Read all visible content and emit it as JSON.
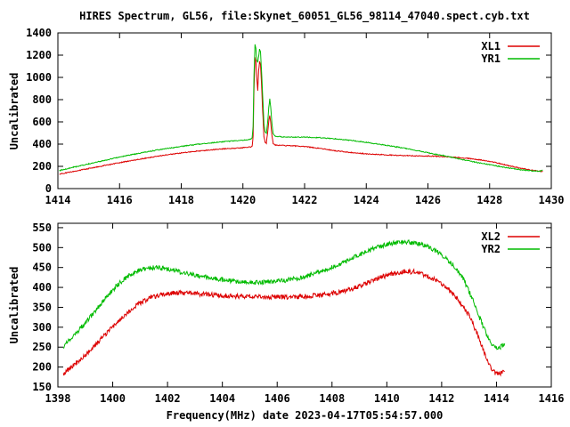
{
  "title": "HIRES Spectrum, GL56, file:Skynet_60051_GL56_98114_47040.spect.cyb.txt",
  "colors": {
    "series_red": "#dd0000",
    "series_green": "#00bb00",
    "axis": "#000000",
    "background": "#ffffff"
  },
  "chart_data": [
    {
      "type": "line",
      "panel": "top",
      "ylabel": "Uncalibrated",
      "xlim": [
        1414,
        1430
      ],
      "ylim": [
        0,
        1400
      ],
      "xticks": [
        1414,
        1416,
        1418,
        1420,
        1422,
        1424,
        1426,
        1428,
        1430
      ],
      "yticks": [
        0,
        200,
        400,
        600,
        800,
        1000,
        1200,
        1400
      ],
      "legend_position": "top-right",
      "series": [
        {
          "name": "XL1",
          "color": "#dd0000",
          "noise": 4,
          "points": [
            [
              1414.05,
              130
            ],
            [
              1414.5,
              155
            ],
            [
              1415,
              180
            ],
            [
              1415.5,
              207
            ],
            [
              1416,
              233
            ],
            [
              1416.5,
              258
            ],
            [
              1417,
              281
            ],
            [
              1417.5,
              302
            ],
            [
              1418,
              320
            ],
            [
              1418.5,
              336
            ],
            [
              1419,
              349
            ],
            [
              1419.5,
              360
            ],
            [
              1420,
              368
            ],
            [
              1420.25,
              374
            ],
            [
              1420.3,
              382
            ],
            [
              1420.33,
              470
            ],
            [
              1420.36,
              900
            ],
            [
              1420.39,
              1180
            ],
            [
              1420.42,
              1145
            ],
            [
              1420.45,
              1000
            ],
            [
              1420.48,
              880
            ],
            [
              1420.51,
              1060
            ],
            [
              1420.54,
              1140
            ],
            [
              1420.57,
              1115
            ],
            [
              1420.6,
              960
            ],
            [
              1420.64,
              700
            ],
            [
              1420.68,
              470
            ],
            [
              1420.72,
              415
            ],
            [
              1420.76,
              408
            ],
            [
              1420.8,
              500
            ],
            [
              1420.84,
              610
            ],
            [
              1420.87,
              660
            ],
            [
              1420.9,
              600
            ],
            [
              1420.94,
              480
            ],
            [
              1420.98,
              405
            ],
            [
              1421.05,
              392
            ],
            [
              1421.3,
              388
            ],
            [
              1421.7,
              384
            ],
            [
              1422,
              378
            ],
            [
              1422.5,
              362
            ],
            [
              1423,
              340
            ],
            [
              1423.5,
              325
            ],
            [
              1424,
              313
            ],
            [
              1424.5,
              305
            ],
            [
              1425,
              299
            ],
            [
              1425.5,
              295
            ],
            [
              1426,
              293
            ],
            [
              1426.5,
              288
            ],
            [
              1427,
              279
            ],
            [
              1427.3,
              272
            ],
            [
              1427.7,
              258
            ],
            [
              1428,
              245
            ],
            [
              1428.3,
              228
            ],
            [
              1428.6,
              207
            ],
            [
              1429,
              183
            ],
            [
              1429.3,
              169
            ],
            [
              1429.5,
              161
            ],
            [
              1429.65,
              157
            ],
            [
              1429.72,
              156
            ]
          ]
        },
        {
          "name": "YR1",
          "color": "#00bb00",
          "noise": 4,
          "points": [
            [
              1414.05,
              162
            ],
            [
              1414.5,
              192
            ],
            [
              1415,
              222
            ],
            [
              1415.5,
              253
            ],
            [
              1416,
              283
            ],
            [
              1416.5,
              311
            ],
            [
              1417,
              336
            ],
            [
              1417.5,
              359
            ],
            [
              1418,
              379
            ],
            [
              1418.5,
              397
            ],
            [
              1419,
              412
            ],
            [
              1419.5,
              425
            ],
            [
              1420,
              436
            ],
            [
              1420.25,
              444
            ],
            [
              1420.3,
              455
            ],
            [
              1420.33,
              560
            ],
            [
              1420.36,
              1020
            ],
            [
              1420.39,
              1295
            ],
            [
              1420.42,
              1260
            ],
            [
              1420.45,
              1150
            ],
            [
              1420.48,
              1135
            ],
            [
              1420.51,
              1190
            ],
            [
              1420.54,
              1255
            ],
            [
              1420.57,
              1230
            ],
            [
              1420.6,
              1080
            ],
            [
              1420.64,
              840
            ],
            [
              1420.68,
              590
            ],
            [
              1420.72,
              510
            ],
            [
              1420.76,
              498
            ],
            [
              1420.8,
              590
            ],
            [
              1420.84,
              730
            ],
            [
              1420.87,
              808
            ],
            [
              1420.9,
              740
            ],
            [
              1420.94,
              590
            ],
            [
              1420.98,
              495
            ],
            [
              1421.05,
              470
            ],
            [
              1421.3,
              465
            ],
            [
              1421.7,
              463
            ],
            [
              1422,
              462
            ],
            [
              1422.5,
              458
            ],
            [
              1423,
              448
            ],
            [
              1423.5,
              434
            ],
            [
              1424,
              416
            ],
            [
              1424.5,
              396
            ],
            [
              1425,
              374
            ],
            [
              1425.5,
              350
            ],
            [
              1426,
              322
            ],
            [
              1426.5,
              296
            ],
            [
              1427,
              268
            ],
            [
              1427.5,
              240
            ],
            [
              1428,
              215
            ],
            [
              1428.3,
              200
            ],
            [
              1428.6,
              186
            ],
            [
              1429,
              170
            ],
            [
              1429.3,
              161
            ],
            [
              1429.5,
              157
            ],
            [
              1429.65,
              158
            ],
            [
              1429.72,
              167
            ]
          ]
        }
      ]
    },
    {
      "type": "line",
      "panel": "bottom",
      "ylabel": "Uncalibrated",
      "xlabel": "Frequency(MHz) date 2023-04-17T05:54:57.000",
      "xlim": [
        1398,
        1416
      ],
      "ylim": [
        150,
        561
      ],
      "xticks": [
        1398,
        1400,
        1402,
        1404,
        1406,
        1408,
        1410,
        1412,
        1414,
        1416
      ],
      "yticks": [
        150,
        200,
        250,
        300,
        350,
        400,
        450,
        500,
        550
      ],
      "legend_position": "top-right",
      "series": [
        {
          "name": "XL2",
          "color": "#dd0000",
          "noise": 6,
          "points": [
            [
              1398.2,
              184
            ],
            [
              1398.6,
              206
            ],
            [
              1399,
              231
            ],
            [
              1399.4,
              258
            ],
            [
              1399.8,
              287
            ],
            [
              1400.2,
              315
            ],
            [
              1400.6,
              341
            ],
            [
              1401,
              361
            ],
            [
              1401.4,
              375
            ],
            [
              1401.8,
              383
            ],
            [
              1402.2,
              386
            ],
            [
              1402.6,
              386
            ],
            [
              1403,
              384
            ],
            [
              1403.5,
              382
            ],
            [
              1404,
              380
            ],
            [
              1404.5,
              378
            ],
            [
              1405,
              377
            ],
            [
              1405.5,
              376
            ],
            [
              1406,
              376
            ],
            [
              1406.5,
              376
            ],
            [
              1407,
              377
            ],
            [
              1407.5,
              380
            ],
            [
              1408,
              385
            ],
            [
              1408.5,
              392
            ],
            [
              1409,
              403
            ],
            [
              1409.4,
              414
            ],
            [
              1409.8,
              426
            ],
            [
              1410.2,
              434
            ],
            [
              1410.6,
              440
            ],
            [
              1411,
              439
            ],
            [
              1411.4,
              431
            ],
            [
              1411.8,
              418
            ],
            [
              1412.2,
              398
            ],
            [
              1412.6,
              370
            ],
            [
              1413,
              330
            ],
            [
              1413.3,
              283
            ],
            [
              1413.6,
              228
            ],
            [
              1413.8,
              196
            ],
            [
              1413.95,
              186
            ],
            [
              1414.1,
              183
            ],
            [
              1414.3,
              191
            ]
          ]
        },
        {
          "name": "YR2",
          "color": "#00bb00",
          "noise": 6,
          "points": [
            [
              1398.2,
              252
            ],
            [
              1398.6,
              281
            ],
            [
              1399,
              311
            ],
            [
              1399.4,
              344
            ],
            [
              1399.8,
              378
            ],
            [
              1400.2,
              408
            ],
            [
              1400.6,
              430
            ],
            [
              1401,
              444
            ],
            [
              1401.3,
              449
            ],
            [
              1401.6,
              450
            ],
            [
              1402,
              446
            ],
            [
              1402.4,
              440
            ],
            [
              1402.8,
              434
            ],
            [
              1403.2,
              428
            ],
            [
              1403.6,
              423
            ],
            [
              1404,
              419
            ],
            [
              1404.4,
              416
            ],
            [
              1404.8,
              414
            ],
            [
              1405.2,
              413
            ],
            [
              1405.6,
              413
            ],
            [
              1406,
              415
            ],
            [
              1406.4,
              419
            ],
            [
              1406.8,
              424
            ],
            [
              1407.2,
              431
            ],
            [
              1407.6,
              440
            ],
            [
              1408,
              450
            ],
            [
              1408.4,
              462
            ],
            [
              1408.8,
              475
            ],
            [
              1409.2,
              488
            ],
            [
              1409.6,
              499
            ],
            [
              1410,
              508
            ],
            [
              1410.4,
              513
            ],
            [
              1410.8,
              514
            ],
            [
              1411.2,
              509
            ],
            [
              1411.6,
              499
            ],
            [
              1412,
              482
            ],
            [
              1412.4,
              458
            ],
            [
              1412.8,
              420
            ],
            [
              1413.1,
              375
            ],
            [
              1413.4,
              322
            ],
            [
              1413.65,
              280
            ],
            [
              1413.85,
              257
            ],
            [
              1414,
              250
            ],
            [
              1414.15,
              251
            ],
            [
              1414.3,
              259
            ]
          ]
        }
      ]
    }
  ]
}
